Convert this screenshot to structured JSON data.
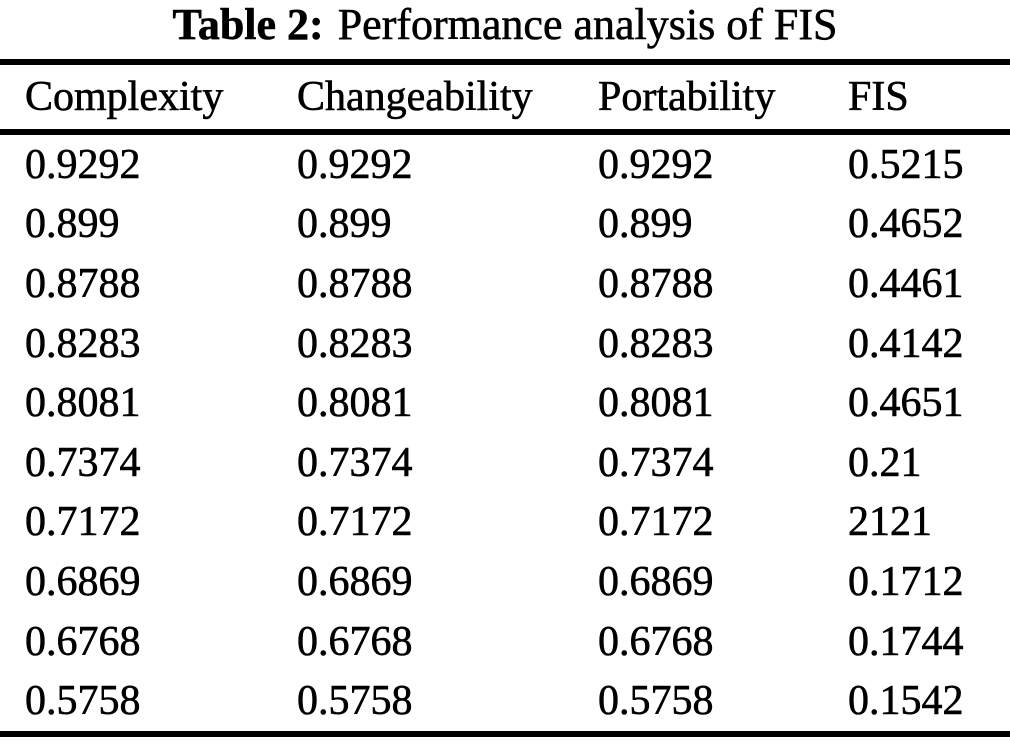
{
  "page": {
    "background": "#ffffff",
    "text_color": "#000000"
  },
  "caption": {
    "label": "Table 2:",
    "text": "Performance analysis of FIS"
  },
  "table": {
    "columns": [
      "Complexity",
      "Changeability",
      "Portability",
      "FIS"
    ],
    "rows": [
      [
        "0.9292",
        "0.9292",
        "0.9292",
        "0.5215"
      ],
      [
        "0.899",
        "0.899",
        "0.899",
        "0.4652"
      ],
      [
        "0.8788",
        "0.8788",
        "0.8788",
        "0.4461"
      ],
      [
        "0.8283",
        "0.8283",
        "0.8283",
        "0.4142"
      ],
      [
        "0.8081",
        "0.8081",
        "0.8081",
        "0.4651"
      ],
      [
        "0.7374",
        "0.7374",
        "0.7374",
        "0.21"
      ],
      [
        "0.7172",
        "0.7172",
        "0.7172",
        "2121"
      ],
      [
        "0.6869",
        "0.6869",
        "0.6869",
        "0.1712"
      ],
      [
        "0.6768",
        "0.6768",
        "0.6768",
        "0.1744"
      ],
      [
        "0.5758",
        "0.5758",
        "0.5758",
        "0.1542"
      ]
    ]
  },
  "chart_data": {
    "type": "table",
    "title": "Table 2: Performance analysis of FIS",
    "columns": [
      "Complexity",
      "Changeability",
      "Portability",
      "FIS"
    ],
    "rows": [
      [
        0.9292,
        0.9292,
        0.9292,
        0.5215
      ],
      [
        0.899,
        0.899,
        0.899,
        0.4652
      ],
      [
        0.8788,
        0.8788,
        0.8788,
        0.4461
      ],
      [
        0.8283,
        0.8283,
        0.8283,
        0.4142
      ],
      [
        0.8081,
        0.8081,
        0.8081,
        0.4651
      ],
      [
        0.7374,
        0.7374,
        0.7374,
        0.21
      ],
      [
        0.7172,
        0.7172,
        0.7172,
        "2121"
      ],
      [
        0.6869,
        0.6869,
        0.6869,
        0.1712
      ],
      [
        0.6768,
        0.6768,
        0.6768,
        0.1744
      ],
      [
        0.5758,
        0.5758,
        0.5758,
        0.1542
      ]
    ]
  }
}
